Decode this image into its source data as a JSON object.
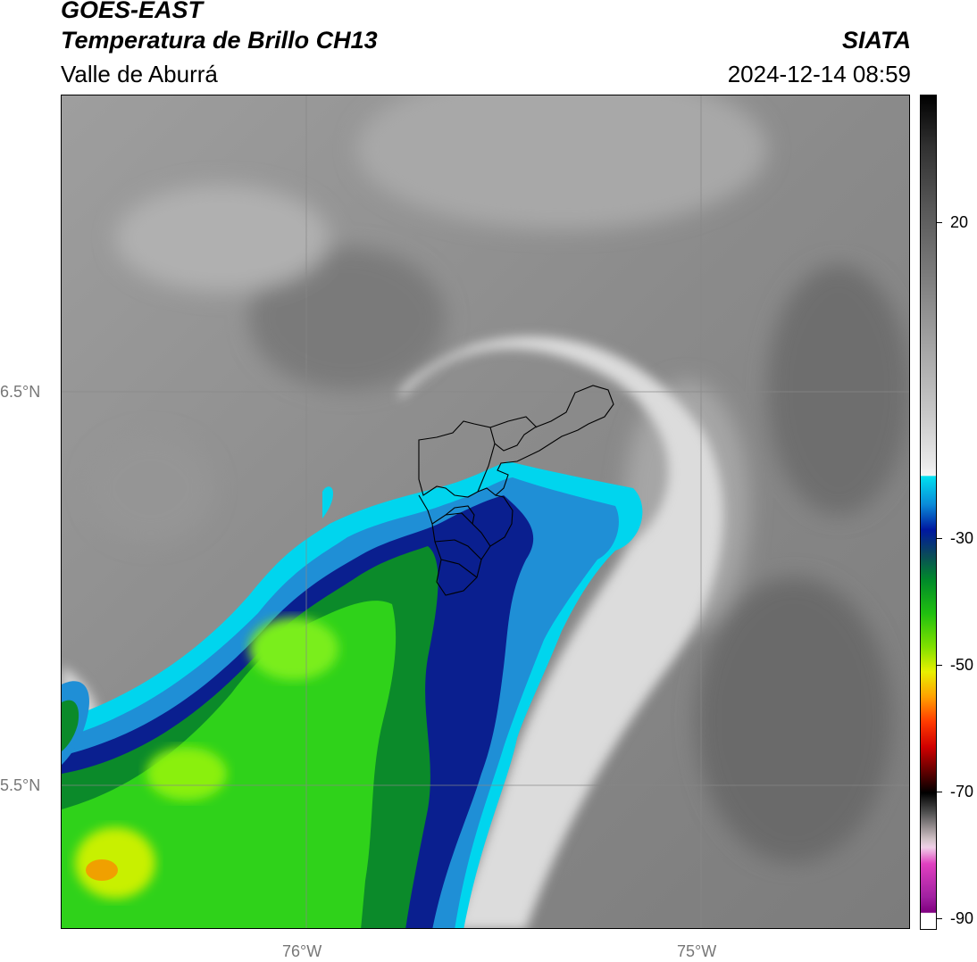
{
  "header": {
    "title_line1": "GOES-EAST",
    "title_line2": "Temperatura de Brillo CH13",
    "brand": "SIATA",
    "region": "Valle de Aburrá",
    "datetime": "2024-12-14 08:59"
  },
  "map": {
    "lon_ticks": [
      "76°W",
      "75°W"
    ],
    "lat_ticks": [
      "6.5°N",
      "5.5°N"
    ]
  },
  "colorbar": {
    "tick_labels": [
      "20",
      "-30",
      "-50",
      "-70",
      "-90"
    ]
  }
}
